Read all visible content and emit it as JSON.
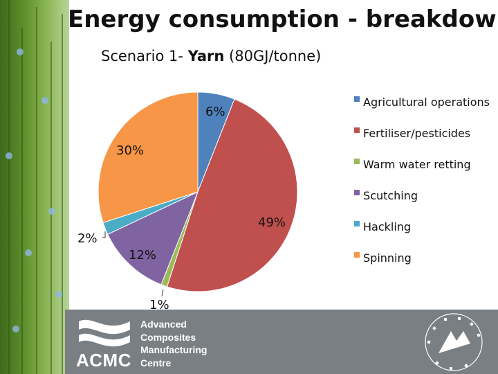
{
  "slide": {
    "title": "Energy consumption - breakdown",
    "subtitle_prefix": "Scenario 1- ",
    "subtitle_bold": "Yarn",
    "subtitle_suffix": " (80GJ/tonne)"
  },
  "chart_data": {
    "type": "pie",
    "title": "Energy consumption - breakdown",
    "subtitle": "Scenario 1- Yarn (80GJ/tonne)",
    "categories": [
      "Agricultural operations",
      "Fertiliser/pesticides",
      "Warm water retting",
      "Scutching",
      "Hackling",
      "Spinning"
    ],
    "values": [
      6,
      49,
      1,
      12,
      2,
      30
    ],
    "value_labels": [
      "6%",
      "49%",
      "1%",
      "12%",
      "2%",
      "30%"
    ],
    "colors": [
      "#4f81bd",
      "#c0504d",
      "#9bbb59",
      "#8064a2",
      "#4bacc6",
      "#f79646"
    ],
    "legend_position": "right"
  },
  "footer": {
    "logo_abbr": "ACMC",
    "logo_name_lines": [
      "Advanced",
      "Composites",
      "Manufacturing",
      "Centre"
    ],
    "seal_text": "UNIVERSITY OF PLYMOUTH",
    "colors": {
      "band": "#7a7f84",
      "text": "#ffffff"
    }
  }
}
